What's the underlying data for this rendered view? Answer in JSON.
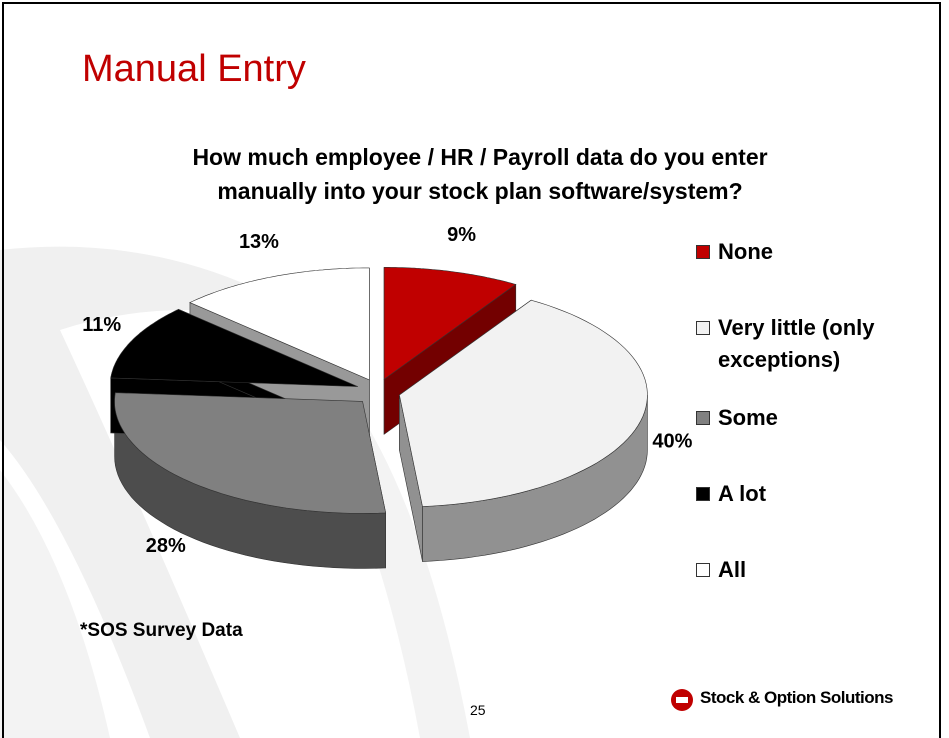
{
  "slide_title": "Manual Entry",
  "chart_data": {
    "type": "pie3d",
    "title": "How much employee / HR / Payroll data do you enter manually into your stock plan software/system?",
    "categories": [
      "None",
      "Very little (only exceptions)",
      "Some",
      "A lot",
      "All"
    ],
    "values": [
      9,
      40,
      28,
      11,
      13
    ],
    "value_labels": [
      "9%",
      "40%",
      "28%",
      "11%",
      "13%"
    ],
    "colors": [
      "#c00000",
      "#f2f2f2",
      "#808080",
      "#000000",
      "#ffffff"
    ],
    "legend": "right"
  },
  "footnote": "*SOS Survey Data",
  "page_number": "25",
  "logo_text": "Stock & Option Solutions"
}
